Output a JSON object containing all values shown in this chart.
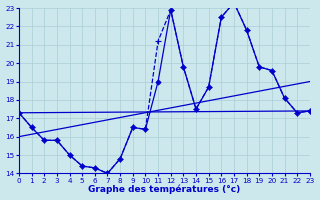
{
  "background_color": "#cce8ec",
  "grid_color": "#aacdd4",
  "line_color": "#0000cc",
  "xlabel": "Graphe des températures (°c)",
  "ylim": [
    14,
    23
  ],
  "xlim": [
    0,
    23
  ],
  "yticks": [
    14,
    15,
    16,
    17,
    18,
    19,
    20,
    21,
    22,
    23
  ],
  "xticks": [
    0,
    1,
    2,
    3,
    4,
    5,
    6,
    7,
    8,
    9,
    10,
    11,
    12,
    13,
    14,
    15,
    16,
    17,
    18,
    19,
    20,
    21,
    22,
    23
  ],
  "series": [
    {
      "x": [
        0,
        1,
        2,
        3,
        4,
        5,
        6,
        7,
        8,
        9,
        10,
        11,
        12,
        13,
        14,
        15,
        16,
        17,
        18,
        19,
        20,
        21,
        22,
        23
      ],
      "y": [
        17.3,
        16.5,
        15.8,
        15.8,
        15.0,
        14.4,
        14.3,
        14.0,
        14.8,
        16.5,
        16.4,
        19.0,
        22.9,
        19.8,
        17.5,
        18.7,
        22.5,
        23.3,
        21.8,
        19.8,
        19.6,
        18.1,
        17.3,
        17.4
      ],
      "marker": "D",
      "linestyle": "-",
      "linewidth": 0.9,
      "markersize": 2.5
    },
    {
      "x": [
        0,
        1,
        2,
        3,
        4,
        5,
        6,
        7,
        8,
        9,
        10,
        11,
        12,
        13,
        14,
        15,
        16,
        17,
        18,
        19,
        20,
        21,
        22,
        23
      ],
      "y": [
        17.3,
        16.5,
        15.8,
        15.8,
        15.0,
        14.4,
        14.3,
        14.0,
        14.8,
        16.5,
        16.4,
        21.2,
        22.9,
        19.8,
        17.5,
        18.7,
        22.5,
        23.3,
        21.8,
        19.8,
        19.6,
        18.1,
        17.3,
        17.4
      ],
      "marker": "+",
      "linestyle": "--",
      "linewidth": 0.9,
      "markersize": 4
    },
    {
      "x": [
        0,
        23
      ],
      "y": [
        17.3,
        17.4
      ],
      "marker": null,
      "linestyle": "-",
      "linewidth": 0.9,
      "markersize": 0
    },
    {
      "x": [
        0,
        23
      ],
      "y": [
        16.0,
        19.0
      ],
      "marker": null,
      "linestyle": "-",
      "linewidth": 0.9,
      "markersize": 0
    }
  ]
}
